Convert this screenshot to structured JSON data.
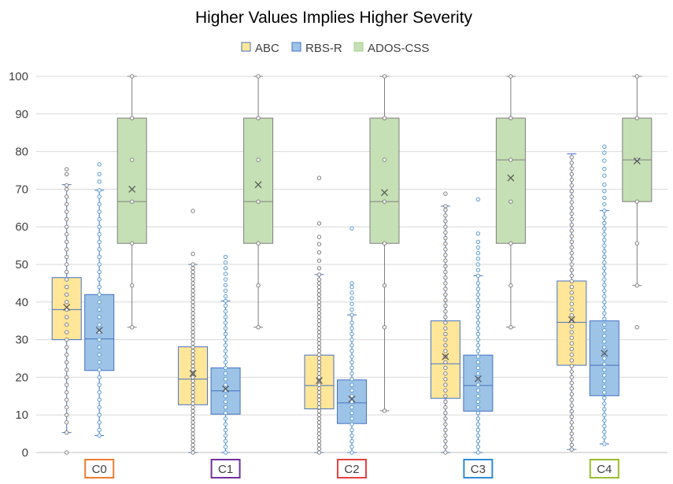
{
  "chart_data": {
    "type": "box",
    "title": "Higher Values  Implies Higher Severity",
    "categories": [
      {
        "label": "C0",
        "color": "#ED7D31"
      },
      {
        "label": "C1",
        "color": "#7030A0"
      },
      {
        "label": "C2",
        "color": "#E8413F"
      },
      {
        "label": "C3",
        "color": "#2E8BD8"
      },
      {
        "label": "C4",
        "color": "#9CBD2C"
      }
    ],
    "ylim": [
      0,
      100
    ],
    "yticks": [
      0,
      10,
      20,
      30,
      40,
      50,
      60,
      70,
      80,
      90,
      100
    ],
    "grid": true,
    "legend_position": "top-center",
    "series": [
      {
        "name": "ABC",
        "fill": "#FFE699",
        "stroke": "#4472C4",
        "point_color": "#7F7F7F",
        "boxes": [
          {
            "min": 5.3,
            "q1": 30,
            "median": 38,
            "q3": 46.5,
            "max": 71.2,
            "mean": 38.6,
            "points": [
              0,
              5.3,
              8,
              10,
              12,
              14,
              16,
              18,
              20,
              22,
              24,
              26,
              28,
              30,
              32,
              34,
              36,
              38,
              40,
              42,
              44,
              46,
              48,
              50,
              52,
              54,
              56,
              58,
              60,
              62,
              64,
              66,
              68,
              70,
              71,
              74,
              75.3
            ]
          },
          {
            "min": 0,
            "q1": 12.7,
            "median": 19.5,
            "q3": 28.1,
            "max": 50,
            "mean": 21,
            "points": [
              0,
              1,
              2,
              3,
              4,
              5,
              6,
              7,
              8,
              9,
              10,
              11,
              12,
              13,
              14,
              15,
              16,
              17,
              18,
              19,
              20,
              21,
              22,
              23,
              24,
              25,
              26,
              27,
              28,
              29,
              30,
              31,
              32,
              33,
              34,
              35,
              36,
              37,
              38,
              39,
              40,
              41,
              42,
              43,
              44,
              45,
              46,
              47,
              48,
              49,
              50,
              52.8,
              64.2
            ]
          },
          {
            "min": 0,
            "q1": 11.6,
            "median": 17.8,
            "q3": 25.9,
            "max": 47.3,
            "mean": 19.1,
            "points": [
              0,
              1,
              2,
              3,
              4,
              5,
              6,
              7,
              8,
              9,
              10,
              11,
              12,
              13,
              14,
              15,
              16,
              17,
              18,
              19,
              20,
              21,
              22,
              23,
              24,
              25,
              26,
              27,
              28,
              29,
              30,
              31,
              32,
              33,
              34,
              35,
              36,
              37,
              38,
              39,
              40,
              41,
              42,
              43,
              44,
              45,
              46,
              47.3,
              49,
              51,
              53.2,
              55.4,
              57.3,
              60.9,
              73
            ]
          },
          {
            "min": 0,
            "q1": 14.4,
            "median": 23.6,
            "q3": 35,
            "max": 65.5,
            "mean": 25.5,
            "points": [
              0,
              1.5,
              3,
              4.5,
              6,
              7.5,
              9,
              10.5,
              12,
              13.5,
              15,
              16.5,
              18,
              19.5,
              21,
              22.5,
              24,
              25.5,
              27,
              28.5,
              30,
              31.5,
              33,
              34.5,
              36,
              37.5,
              39,
              40.5,
              42,
              43.5,
              45,
              46.5,
              48,
              49.5,
              51,
              52.5,
              54,
              55.5,
              57,
              58.5,
              60,
              61.5,
              63,
              64.5,
              65.5,
              68.8
            ]
          },
          {
            "min": 0.8,
            "q1": 23.2,
            "median": 34.6,
            "q3": 45.6,
            "max": 79.4,
            "mean": 35.3,
            "points": [
              0.8,
              2,
              3.5,
              5,
              6.5,
              8,
              9.5,
              11,
              12.5,
              14,
              15.5,
              17,
              18.5,
              20,
              21.5,
              23,
              24.5,
              26,
              27.5,
              29,
              30.5,
              32,
              33.5,
              35,
              36.5,
              38,
              39.5,
              41,
              42.5,
              44,
              45.5,
              47,
              48.5,
              50,
              51.5,
              53,
              54.5,
              56,
              57.5,
              59,
              60.5,
              62,
              63.5,
              65,
              66.5,
              68,
              69.5,
              71,
              72.5,
              74,
              75.5,
              77,
              78.5
            ]
          }
        ]
      },
      {
        "name": "RBS-R",
        "fill": "#9DC3E6",
        "stroke": "#4472C4",
        "point_color": "#5B9BD5",
        "boxes": [
          {
            "min": 4.5,
            "q1": 21.8,
            "median": 30.2,
            "q3": 42,
            "max": 69.7,
            "mean": 32.5,
            "points": [
              4.5,
              6,
              8,
              10,
              12,
              14,
              16,
              18,
              20,
              22,
              24,
              26,
              28,
              30,
              32,
              34,
              36,
              38,
              40,
              42,
              44,
              46,
              48,
              50,
              52,
              54,
              56,
              58,
              60,
              62,
              64,
              66,
              68,
              69.7,
              72,
              74,
              76.6
            ]
          },
          {
            "min": 0,
            "q1": 10.2,
            "median": 16.4,
            "q3": 22.5,
            "max": 40.3,
            "mean": 16.9,
            "points": [
              0,
              1.5,
              3,
              4.5,
              6,
              7.5,
              9,
              10.5,
              12,
              13.5,
              15,
              16.5,
              18,
              19.5,
              21,
              22.5,
              24,
              25.5,
              27,
              28.5,
              30,
              31.5,
              33,
              34.5,
              36,
              37.5,
              39,
              40.3,
              41.5,
              43,
              44.5,
              46,
              47.5,
              49,
              50.5,
              52
            ]
          },
          {
            "min": 0,
            "q1": 7.7,
            "median": 13.2,
            "q3": 19.3,
            "max": 36.6,
            "mean": 14.2,
            "points": [
              0,
              1.5,
              3,
              4.5,
              6,
              7.5,
              9,
              10.5,
              12,
              13.5,
              15,
              16.5,
              18,
              19.5,
              21,
              22.5,
              24,
              25.5,
              27,
              28.5,
              30,
              31.5,
              33,
              34.5,
              36.6,
              38,
              39.5,
              41,
              42.5,
              44,
              45,
              59.6
            ]
          },
          {
            "min": 0,
            "q1": 11,
            "median": 17.8,
            "q3": 25.9,
            "max": 47,
            "mean": 19.6,
            "points": [
              0,
              1.5,
              3,
              4.5,
              6,
              7.5,
              9,
              10.5,
              12,
              13.5,
              15,
              16.5,
              18,
              19.5,
              21,
              22.5,
              24,
              25.5,
              27,
              28.5,
              30,
              31.5,
              33,
              34.5,
              36,
              37.5,
              39,
              40.5,
              42,
              43.5,
              45,
              47,
              48.5,
              50,
              51.5,
              53,
              54.5,
              56,
              58.2,
              67.3
            ]
          },
          {
            "min": 2.3,
            "q1": 15.1,
            "median": 23.2,
            "q3": 35,
            "max": 64.3,
            "mean": 26.4,
            "points": [
              2.3,
              4,
              5.5,
              7,
              8.5,
              10,
              11.5,
              13,
              14.5,
              16,
              17.5,
              19,
              20.5,
              22,
              23.5,
              25,
              26.5,
              28,
              29.5,
              31,
              32.5,
              34,
              35.5,
              37,
              38.5,
              40,
              41.5,
              43,
              44.5,
              46,
              47.5,
              49,
              50.5,
              52,
              53.5,
              55,
              56.5,
              58,
              59.5,
              61,
              62.5,
              64.3,
              66,
              67.7,
              69.5,
              71.2,
              73.6,
              75.4,
              77.6,
              79.7,
              81.3
            ]
          }
        ]
      },
      {
        "name": "ADOS-CSS",
        "fill": "#C5E0B4",
        "stroke": "#7F7F7F",
        "point_color": "#7F7F7F",
        "boxes": [
          {
            "min": 33.3,
            "q1": 55.6,
            "median": 66.7,
            "q3": 88.9,
            "max": 100,
            "mean": 70,
            "points": [
              33.3,
              44.4,
              55.6,
              66.7,
              77.8,
              88.9,
              100
            ]
          },
          {
            "min": 33.3,
            "q1": 55.6,
            "median": 66.7,
            "q3": 88.9,
            "max": 100,
            "mean": 71.2,
            "points": [
              33.3,
              44.4,
              55.6,
              66.7,
              77.8,
              88.9,
              100
            ]
          },
          {
            "min": 11.1,
            "q1": 55.6,
            "median": 66.7,
            "q3": 88.9,
            "max": 100,
            "mean": 69.1,
            "points": [
              11.1,
              33.3,
              44.4,
              55.6,
              66.7,
              77.8,
              88.9,
              100
            ]
          },
          {
            "min": 33.3,
            "q1": 55.6,
            "median": 77.8,
            "q3": 88.9,
            "max": 100,
            "mean": 73,
            "points": [
              33.3,
              44.4,
              55.6,
              66.7,
              77.8,
              88.9,
              100
            ]
          },
          {
            "min": 44.4,
            "q1": 66.7,
            "median": 77.8,
            "q3": 88.9,
            "max": 100,
            "mean": 77.5,
            "points": [
              33.3,
              44.4,
              55.6,
              66.7,
              77.8,
              88.9,
              100
            ]
          }
        ]
      }
    ]
  }
}
